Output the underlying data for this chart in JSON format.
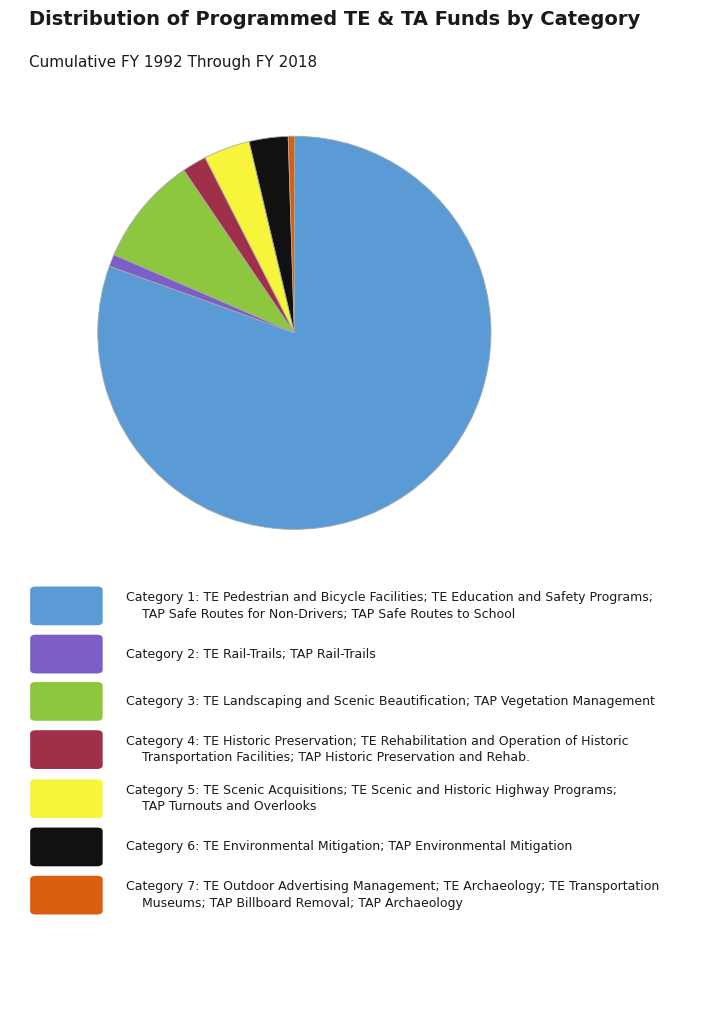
{
  "title": "Distribution of Programmed TE & TA Funds by Category",
  "subtitle": "Cumulative FY 1992 Through FY 2018",
  "title_fontsize": 14,
  "subtitle_fontsize": 11,
  "background_color": "#ffffff",
  "pie_values": [
    80.5,
    1.0,
    9.0,
    2.0,
    3.8,
    3.2,
    0.5
  ],
  "pie_colors": [
    "#5b9bd5",
    "#7b5fc7",
    "#8dc63f",
    "#a0304a",
    "#f7f53a",
    "#111111",
    "#d95f0e"
  ],
  "pie_startangle": 90,
  "legend_items": [
    {
      "color": "#5b9bd5",
      "label": "Category 1: TE Pedestrian and Bicycle Facilities; TE Education and Safety Programs;\n    TAP Safe Routes for Non-Drivers; TAP Safe Routes to School",
      "nlines": 2
    },
    {
      "color": "#7b5fc7",
      "label": "Category 2: TE Rail-Trails; TAP Rail-Trails",
      "nlines": 1
    },
    {
      "color": "#8dc63f",
      "label": "Category 3: TE Landscaping and Scenic Beautification; TAP Vegetation Management",
      "nlines": 1
    },
    {
      "color": "#a0304a",
      "label": "Category 4: TE Historic Preservation; TE Rehabilitation and Operation of Historic\n    Transportation Facilities; TAP Historic Preservation and Rehab.",
      "nlines": 2
    },
    {
      "color": "#f7f53a",
      "label": "Category 5: TE Scenic Acquisitions; TE Scenic and Historic Highway Programs;\n    TAP Turnouts and Overlooks",
      "nlines": 2
    },
    {
      "color": "#111111",
      "label": "Category 6: TE Environmental Mitigation; TAP Environmental Mitigation",
      "nlines": 1
    },
    {
      "color": "#d95f0e",
      "label": "Category 7: TE Outdoor Advertising Management; TE Archaeology; TE Transportation\n    Museums; TAP Billboard Removal; TAP Archaeology",
      "nlines": 2
    }
  ]
}
